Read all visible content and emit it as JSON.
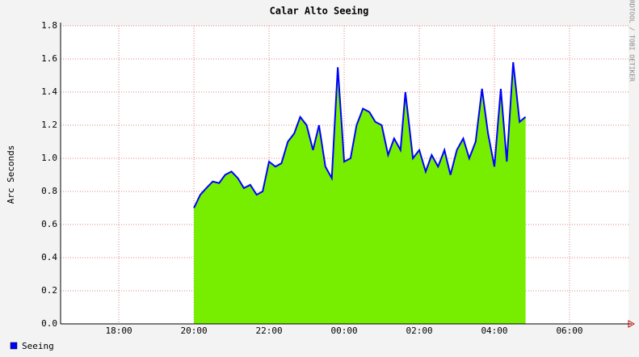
{
  "chart_data": {
    "type": "area",
    "title": "Calar Alto Seeing",
    "y_label": "Arc Seconds",
    "credit": "RRDTOOL / TOBI OETIKER",
    "xlim": [
      16.45,
      31.57
    ],
    "ylim": [
      0,
      1.8
    ],
    "xticks": [
      {
        "value": 18,
        "label": "18:00"
      },
      {
        "value": 20,
        "label": "20:00"
      },
      {
        "value": 22,
        "label": "22:00"
      },
      {
        "value": 24,
        "label": "00:00"
      },
      {
        "value": 26,
        "label": "02:00"
      },
      {
        "value": 28,
        "label": "04:00"
      },
      {
        "value": 30,
        "label": "06:00"
      }
    ],
    "yticks": [
      {
        "value": 0,
        "label": "0.0"
      },
      0.2,
      0.4,
      0.6,
      0.8,
      {
        "value": 1,
        "label": "1.0"
      },
      1.2,
      1.4,
      1.6,
      1.8
    ],
    "grid": true,
    "x": [
      20.0,
      20.17,
      20.33,
      20.5,
      20.67,
      20.83,
      21.0,
      21.17,
      21.33,
      21.5,
      21.67,
      21.83,
      22.0,
      22.17,
      22.33,
      22.5,
      22.67,
      22.83,
      23.0,
      23.17,
      23.33,
      23.5,
      23.67,
      23.83,
      24.0,
      24.17,
      24.33,
      24.5,
      24.67,
      24.83,
      25.0,
      25.17,
      25.33,
      25.5,
      25.63,
      25.83,
      26.0,
      26.17,
      26.33,
      26.5,
      26.67,
      26.83,
      27.0,
      27.17,
      27.33,
      27.5,
      27.67,
      27.83,
      28.0,
      28.17,
      28.33,
      28.5,
      28.67,
      28.83
    ],
    "series": [
      {
        "name": "Seeing",
        "line_color": "#0000ff",
        "color": "#77ee00",
        "values": [
          0.7,
          0.78,
          0.82,
          0.86,
          0.85,
          0.9,
          0.92,
          0.88,
          0.82,
          0.84,
          0.78,
          0.8,
          0.98,
          0.95,
          0.97,
          1.1,
          1.15,
          1.25,
          1.2,
          1.05,
          1.2,
          0.95,
          0.88,
          1.55,
          0.98,
          1.0,
          1.2,
          1.3,
          1.28,
          1.22,
          1.2,
          1.02,
          1.12,
          1.05,
          1.4,
          1.0,
          1.05,
          0.92,
          1.02,
          0.95,
          1.05,
          0.9,
          1.05,
          1.12,
          1.0,
          1.1,
          1.42,
          1.15,
          0.95,
          1.42,
          0.98,
          1.58,
          1.22,
          1.25
        ]
      }
    ]
  }
}
